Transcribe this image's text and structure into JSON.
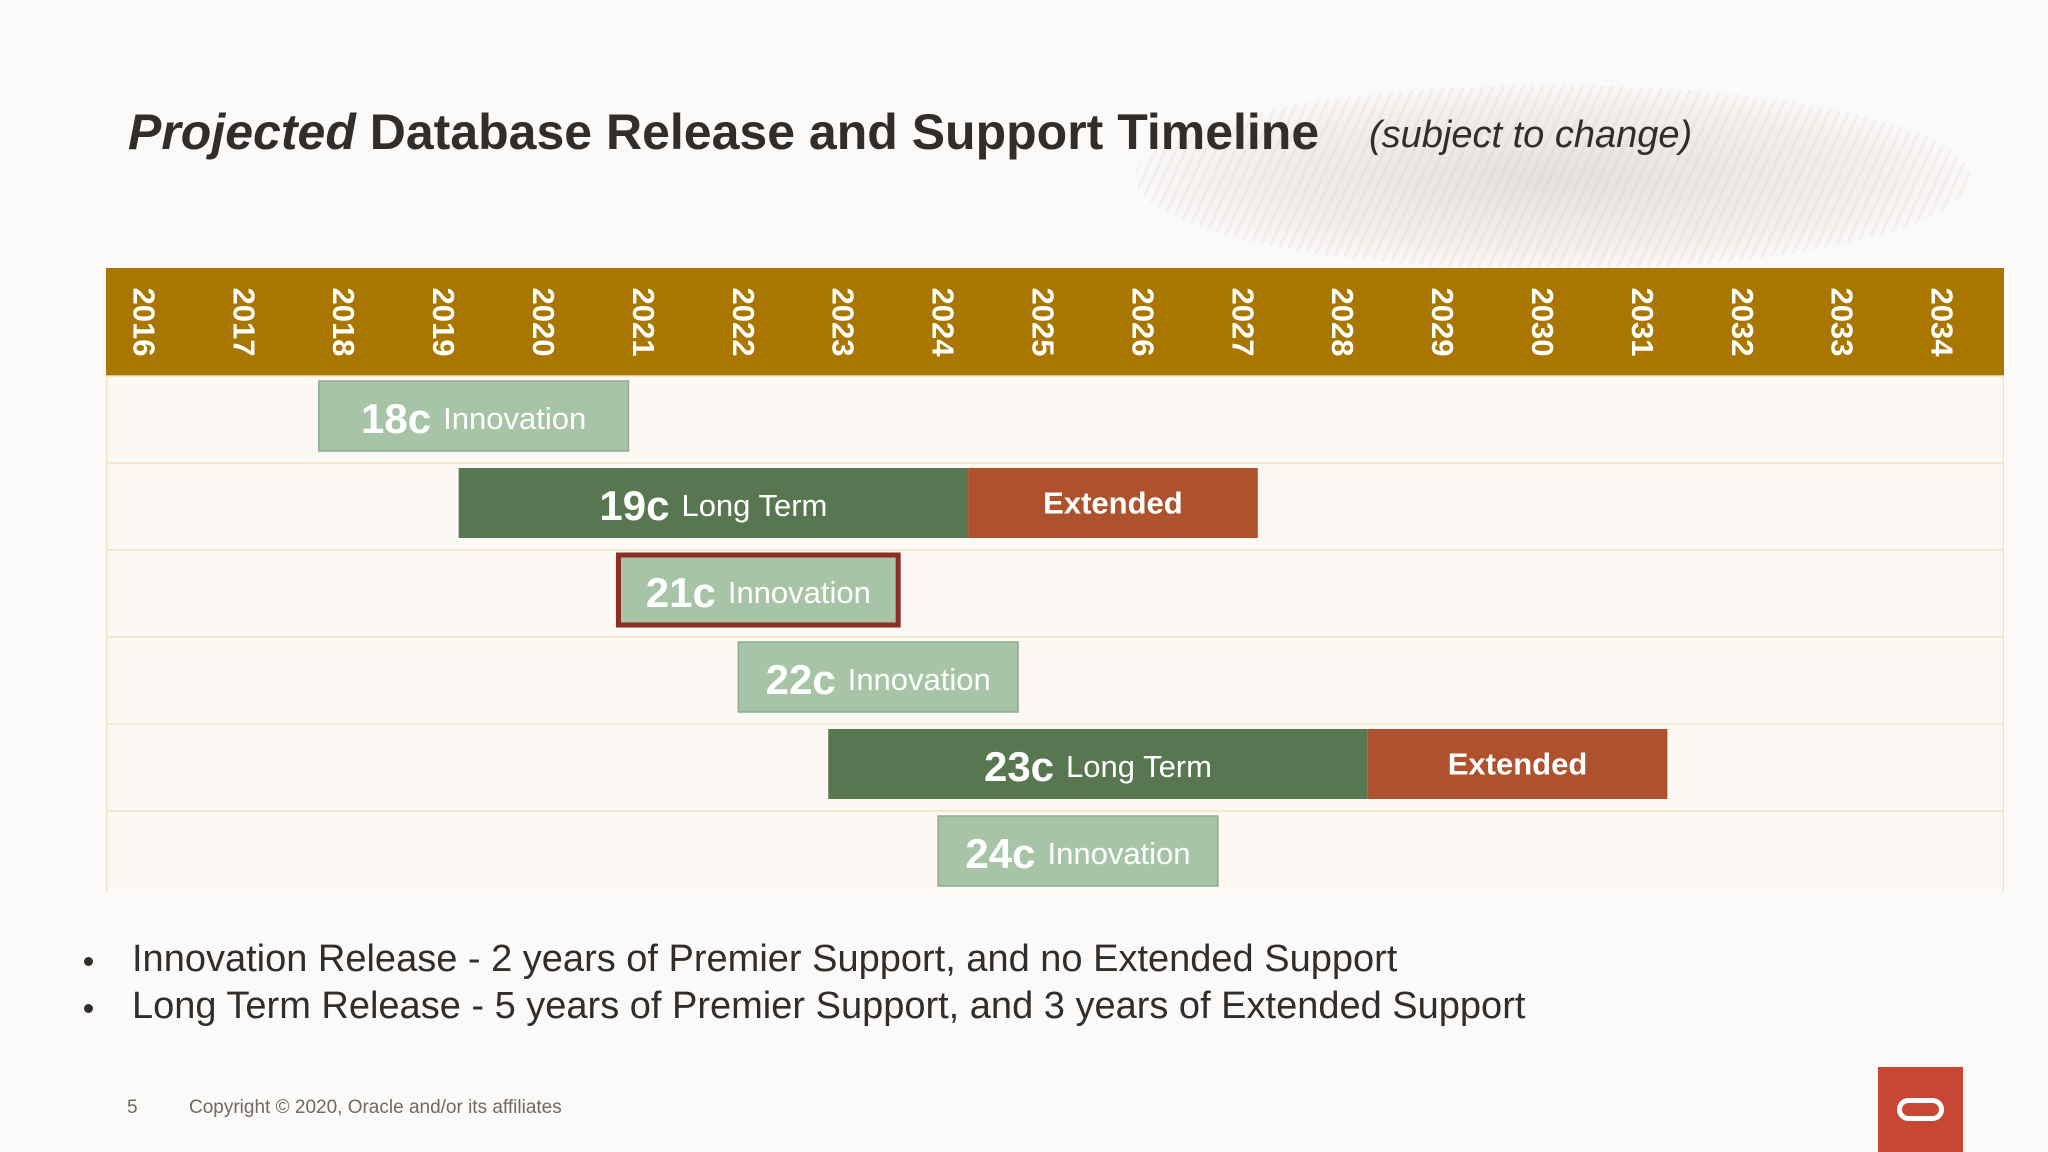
{
  "header": {
    "title_italic": "Projected",
    "title_rest": "Database Release and Support Timeline",
    "subtitle": "(subject to change)"
  },
  "chart_data": {
    "type": "gantt",
    "years": [
      "2016",
      "2017",
      "2018",
      "2019",
      "2020",
      "2021",
      "2022",
      "2023",
      "2024",
      "2025",
      "2026",
      "2027",
      "2028",
      "2029",
      "2030",
      "2031",
      "2032",
      "2033",
      "2034"
    ],
    "rows": [
      {
        "version": "18c",
        "label": "Innovation",
        "premier": [
          2018.0,
          2021.1
        ],
        "extended": null,
        "highlight": false
      },
      {
        "version": "19c",
        "label": "Long Term",
        "premier": [
          2019.4,
          2024.5
        ],
        "extended": [
          2024.5,
          2027.4
        ],
        "extended_label": "Extended",
        "highlight": false
      },
      {
        "version": "21c",
        "label": "Innovation",
        "premier": [
          2021.0,
          2023.8
        ],
        "extended": null,
        "highlight": true
      },
      {
        "version": "22c",
        "label": "Innovation",
        "premier": [
          2022.2,
          2025.0
        ],
        "extended": null,
        "highlight": false
      },
      {
        "version": "23c",
        "label": "Long Term",
        "premier": [
          2023.1,
          2028.5
        ],
        "extended": [
          2028.5,
          2031.5
        ],
        "extended_label": "Extended",
        "highlight": false
      },
      {
        "version": "24c",
        "label": "Innovation",
        "premier": [
          2024.2,
          2027.0
        ],
        "extended": null,
        "highlight": false
      }
    ],
    "colors": {
      "year_band": "#a97700",
      "innovation": "#a7c4a7",
      "long_term": "#58764f",
      "extended": "#ad522c",
      "highlight_border": "#8e2d24",
      "gridline": "#efe4c0"
    }
  },
  "bullets": [
    "Innovation Release - 2 years of Premier Support, and no Extended Support",
    "Long Term Release - 5 years of Premier Support, and 3 years of Extended Support"
  ],
  "footer": {
    "page_number": "5",
    "copyright": "Copyright © 2020, Oracle and/or its affiliates"
  },
  "brand": {
    "logo_icon": "oracle-logo-icon",
    "accent": "#c74634"
  }
}
